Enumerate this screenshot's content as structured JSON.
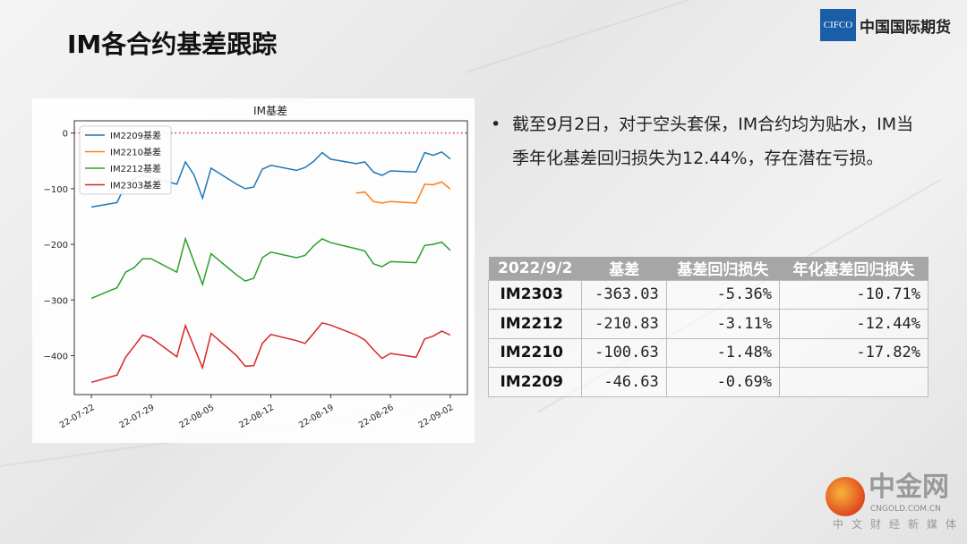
{
  "slide": {
    "title": "IM各合约基差跟踪",
    "logo": {
      "mark": "CIFCO",
      "name": "中国国际期货",
      "color": "#1a5ea8"
    },
    "bullet": "截至9月2日，对于空头套保，IM合约均为贴水，IM当季年化基差回归损失为12.44%，存在潜在亏损。",
    "watermark": {
      "name": "中金网",
      "url": "CNGOLD.COM.CN",
      "sub": "中文财经新媒体"
    }
  },
  "table": {
    "headers": [
      "2022/9/2",
      "基差",
      "基差回归损失",
      "年化基差回归损失"
    ],
    "rows": [
      [
        "IM2303",
        "-363.03",
        "-5.36%",
        "-10.71%"
      ],
      [
        "IM2212",
        "-210.83",
        "-3.11%",
        "-12.44%"
      ],
      [
        "IM2210",
        "-100.63",
        "-1.48%",
        "-17.82%"
      ],
      [
        "IM2209",
        "-46.63",
        "-0.69%",
        ""
      ]
    ],
    "header_bg": "#a6a6a6"
  },
  "chart_data": {
    "type": "line",
    "title": "IM基差",
    "xlabel": "",
    "ylabel": "",
    "ylim": [
      -470,
      22
    ],
    "xlim": [
      "2022-07-20",
      "2022-09-04"
    ],
    "grid": false,
    "legend": "top-left",
    "yticks": [
      0,
      -100,
      -200,
      -300,
      -400
    ],
    "ytick_labels": [
      "0",
      "−100",
      "−200",
      "−300",
      "−400"
    ],
    "xtick_labels": [
      "22-07-22",
      "22-07-29",
      "22-08-05",
      "22-08-12",
      "22-08-19",
      "22-08-26",
      "22-09-02"
    ],
    "xticks": [
      "2022-07-22",
      "2022-07-29",
      "2022-08-05",
      "2022-08-12",
      "2022-08-19",
      "2022-08-26",
      "2022-09-02"
    ],
    "reference_line": {
      "y": 0,
      "style": "dotted",
      "color": "#e03030"
    },
    "x": [
      "2022-07-22",
      "2022-07-25",
      "2022-07-26",
      "2022-07-27",
      "2022-07-28",
      "2022-07-29",
      "2022-08-01",
      "2022-08-02",
      "2022-08-03",
      "2022-08-04",
      "2022-08-05",
      "2022-08-08",
      "2022-08-09",
      "2022-08-10",
      "2022-08-11",
      "2022-08-12",
      "2022-08-15",
      "2022-08-16",
      "2022-08-17",
      "2022-08-18",
      "2022-08-19",
      "2022-08-22",
      "2022-08-23",
      "2022-08-24",
      "2022-08-25",
      "2022-08-26",
      "2022-08-29",
      "2022-08-30",
      "2022-08-31",
      "2022-09-01",
      "2022-09-02"
    ],
    "series": [
      {
        "name": "IM2209基差",
        "color": "#1f77b4",
        "values": [
          -133,
          -125,
          -92,
          -82,
          -76,
          -80,
          -92,
          -52,
          -75,
          -117,
          -63,
          -92,
          -100,
          -97,
          -65,
          -58,
          -67,
          -62,
          -51,
          -35,
          -47,
          -55,
          -52,
          -70,
          -76,
          -68,
          -70,
          -35,
          -40,
          -34,
          -46.63
        ]
      },
      {
        "name": "IM2210基差",
        "color": "#ff7f0e",
        "values": [
          null,
          null,
          null,
          null,
          null,
          null,
          null,
          null,
          null,
          null,
          null,
          null,
          null,
          null,
          null,
          null,
          null,
          null,
          null,
          null,
          null,
          -108,
          -106,
          -123,
          -126,
          -123,
          -126,
          -92,
          -93,
          -88,
          -100.63
        ]
      },
      {
        "name": "IM2212基差",
        "color": "#2ca02c",
        "values": [
          -297,
          -278,
          -250,
          -242,
          -226,
          -226,
          -250,
          -190,
          -231,
          -272,
          -217,
          -255,
          -266,
          -261,
          -224,
          -214,
          -224,
          -220,
          -203,
          -190,
          -197,
          -208,
          -212,
          -235,
          -240,
          -231,
          -233,
          -202,
          -200,
          -196,
          -210.83
        ]
      },
      {
        "name": "IM2303基差",
        "color": "#d62728",
        "values": [
          -448,
          -435,
          -403,
          -383,
          -363,
          -368,
          -402,
          -346,
          -384,
          -422,
          -360,
          -400,
          -419,
          -418,
          -378,
          -362,
          -373,
          -378,
          -360,
          -341,
          -345,
          -363,
          -372,
          -389,
          -405,
          -396,
          -403,
          -370,
          -365,
          -356,
          -363.03
        ]
      }
    ]
  }
}
